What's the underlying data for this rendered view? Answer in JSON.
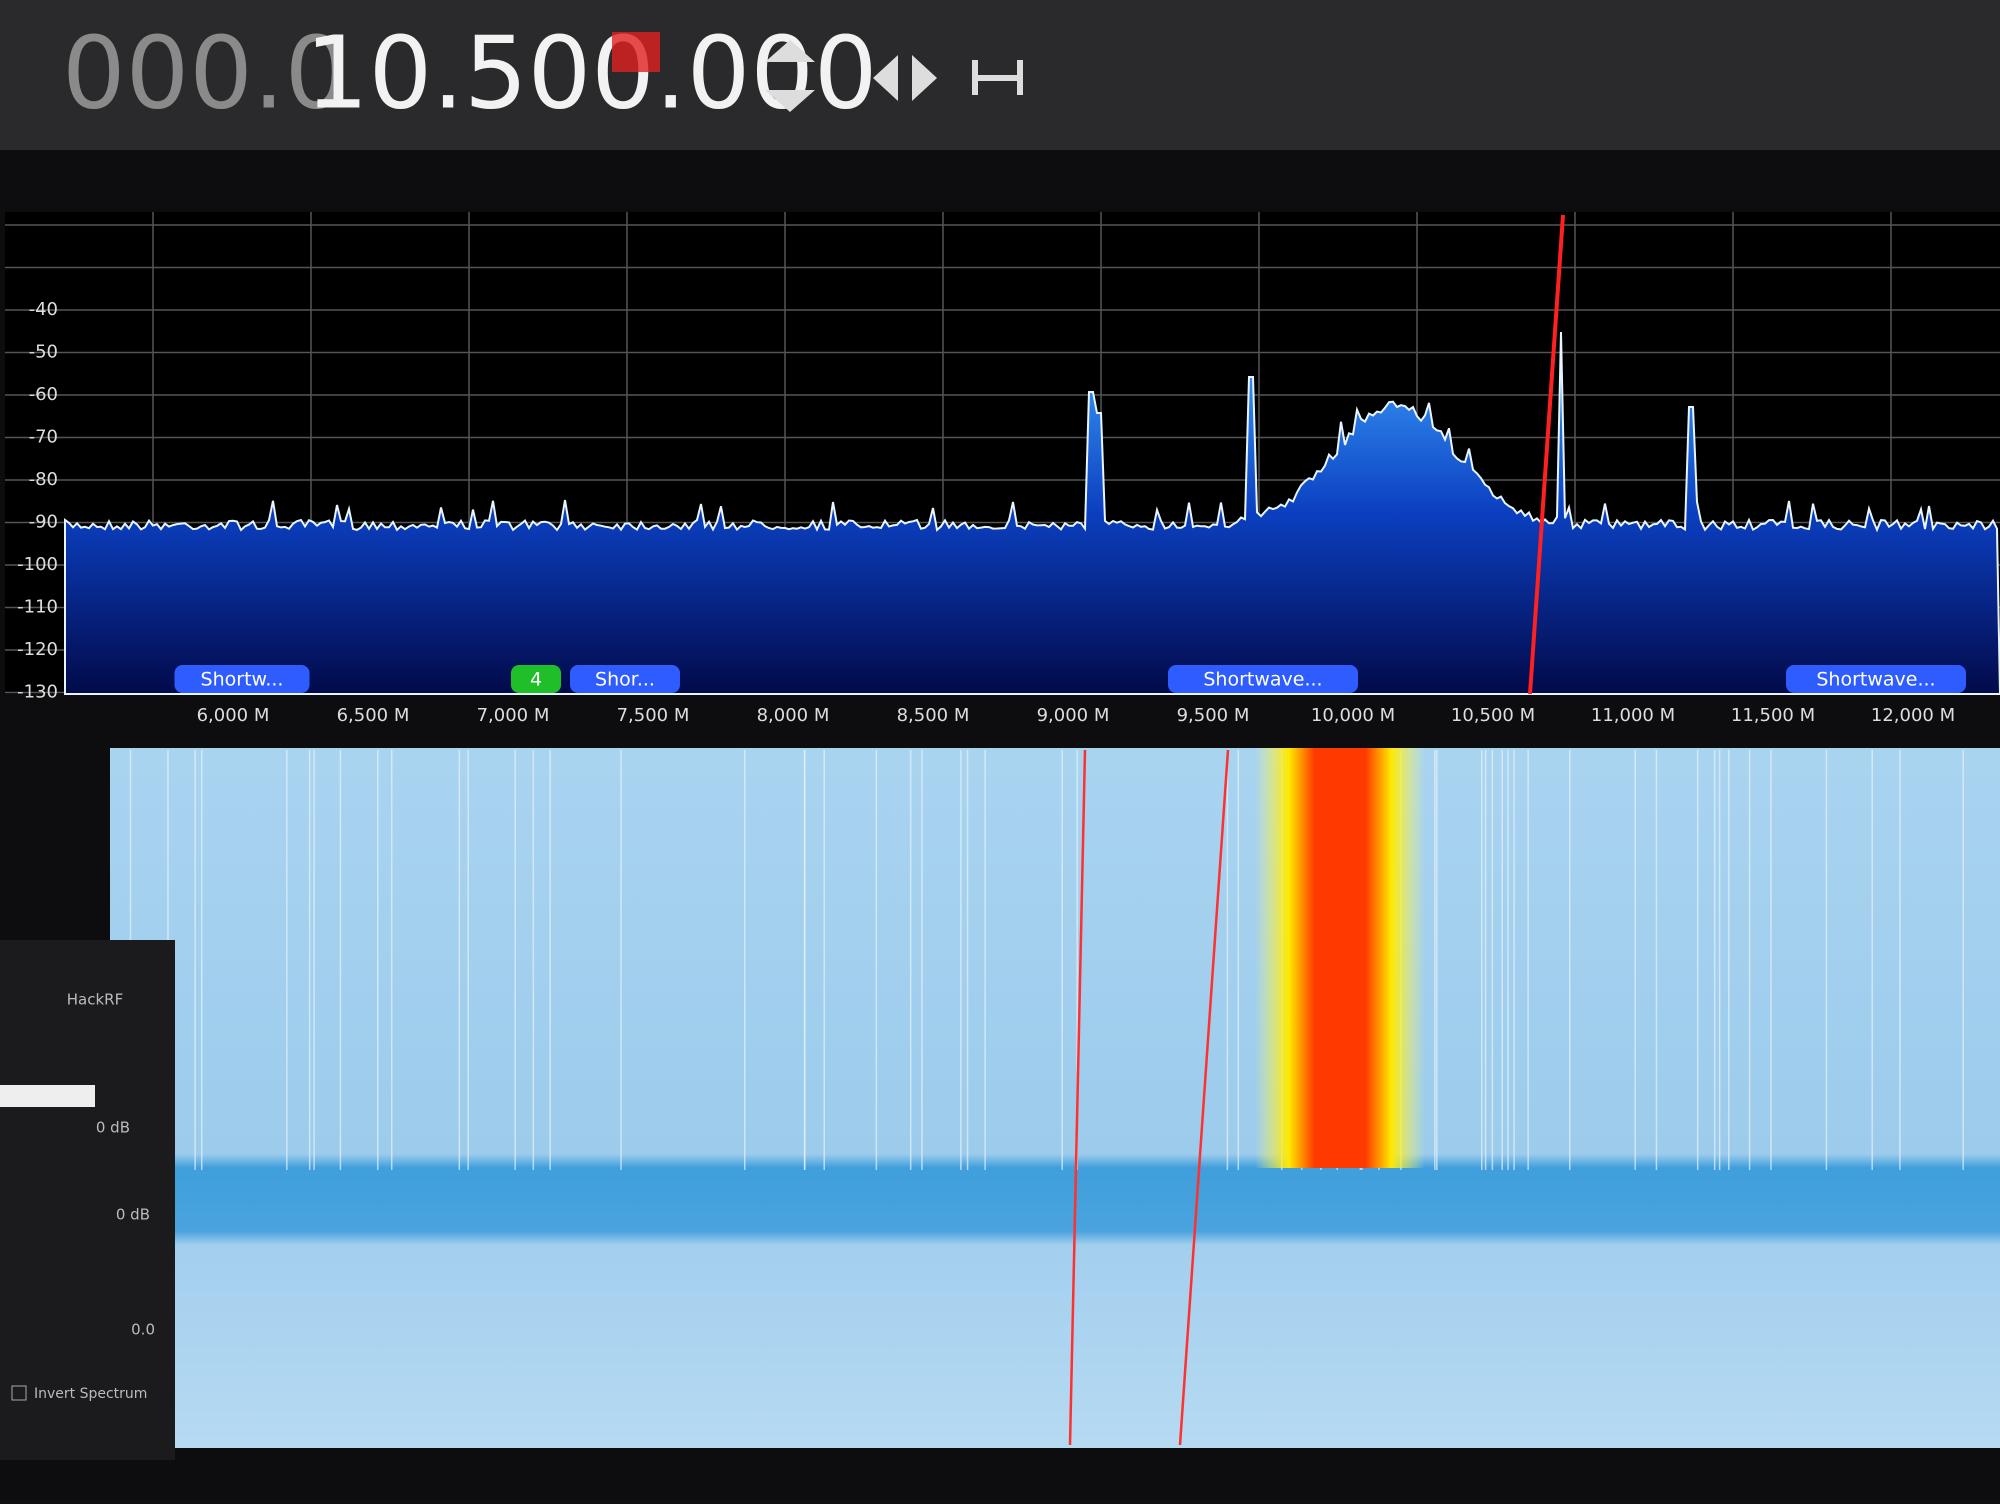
{
  "frequency": {
    "dim": "000.0",
    "bright": "10.500.000"
  },
  "spectrum": {
    "y_labels": [
      "-40",
      "-50",
      "-60",
      "-70",
      "-80",
      "-90",
      "-100",
      "-110",
      "-120",
      "-130"
    ],
    "x_labels": [
      "6,000 M",
      "6,500 M",
      "7,000 M",
      "7,500 M",
      "8,000 M",
      "8,500 M",
      "9,000 M",
      "9,500 M",
      "10,000 M",
      "10,500 M",
      "11,000 M",
      "11,500 M",
      "12,000 M"
    ],
    "band_tags": [
      "Shortw...",
      "4",
      "Shor...",
      "Shortwave...",
      "Shortwave..."
    ]
  },
  "side_panel": {
    "device": "HackRF",
    "gain_1": "0 dB",
    "gain_2": "0 dB",
    "value": "0.0",
    "checkbox": "Invert Spectrum"
  }
}
